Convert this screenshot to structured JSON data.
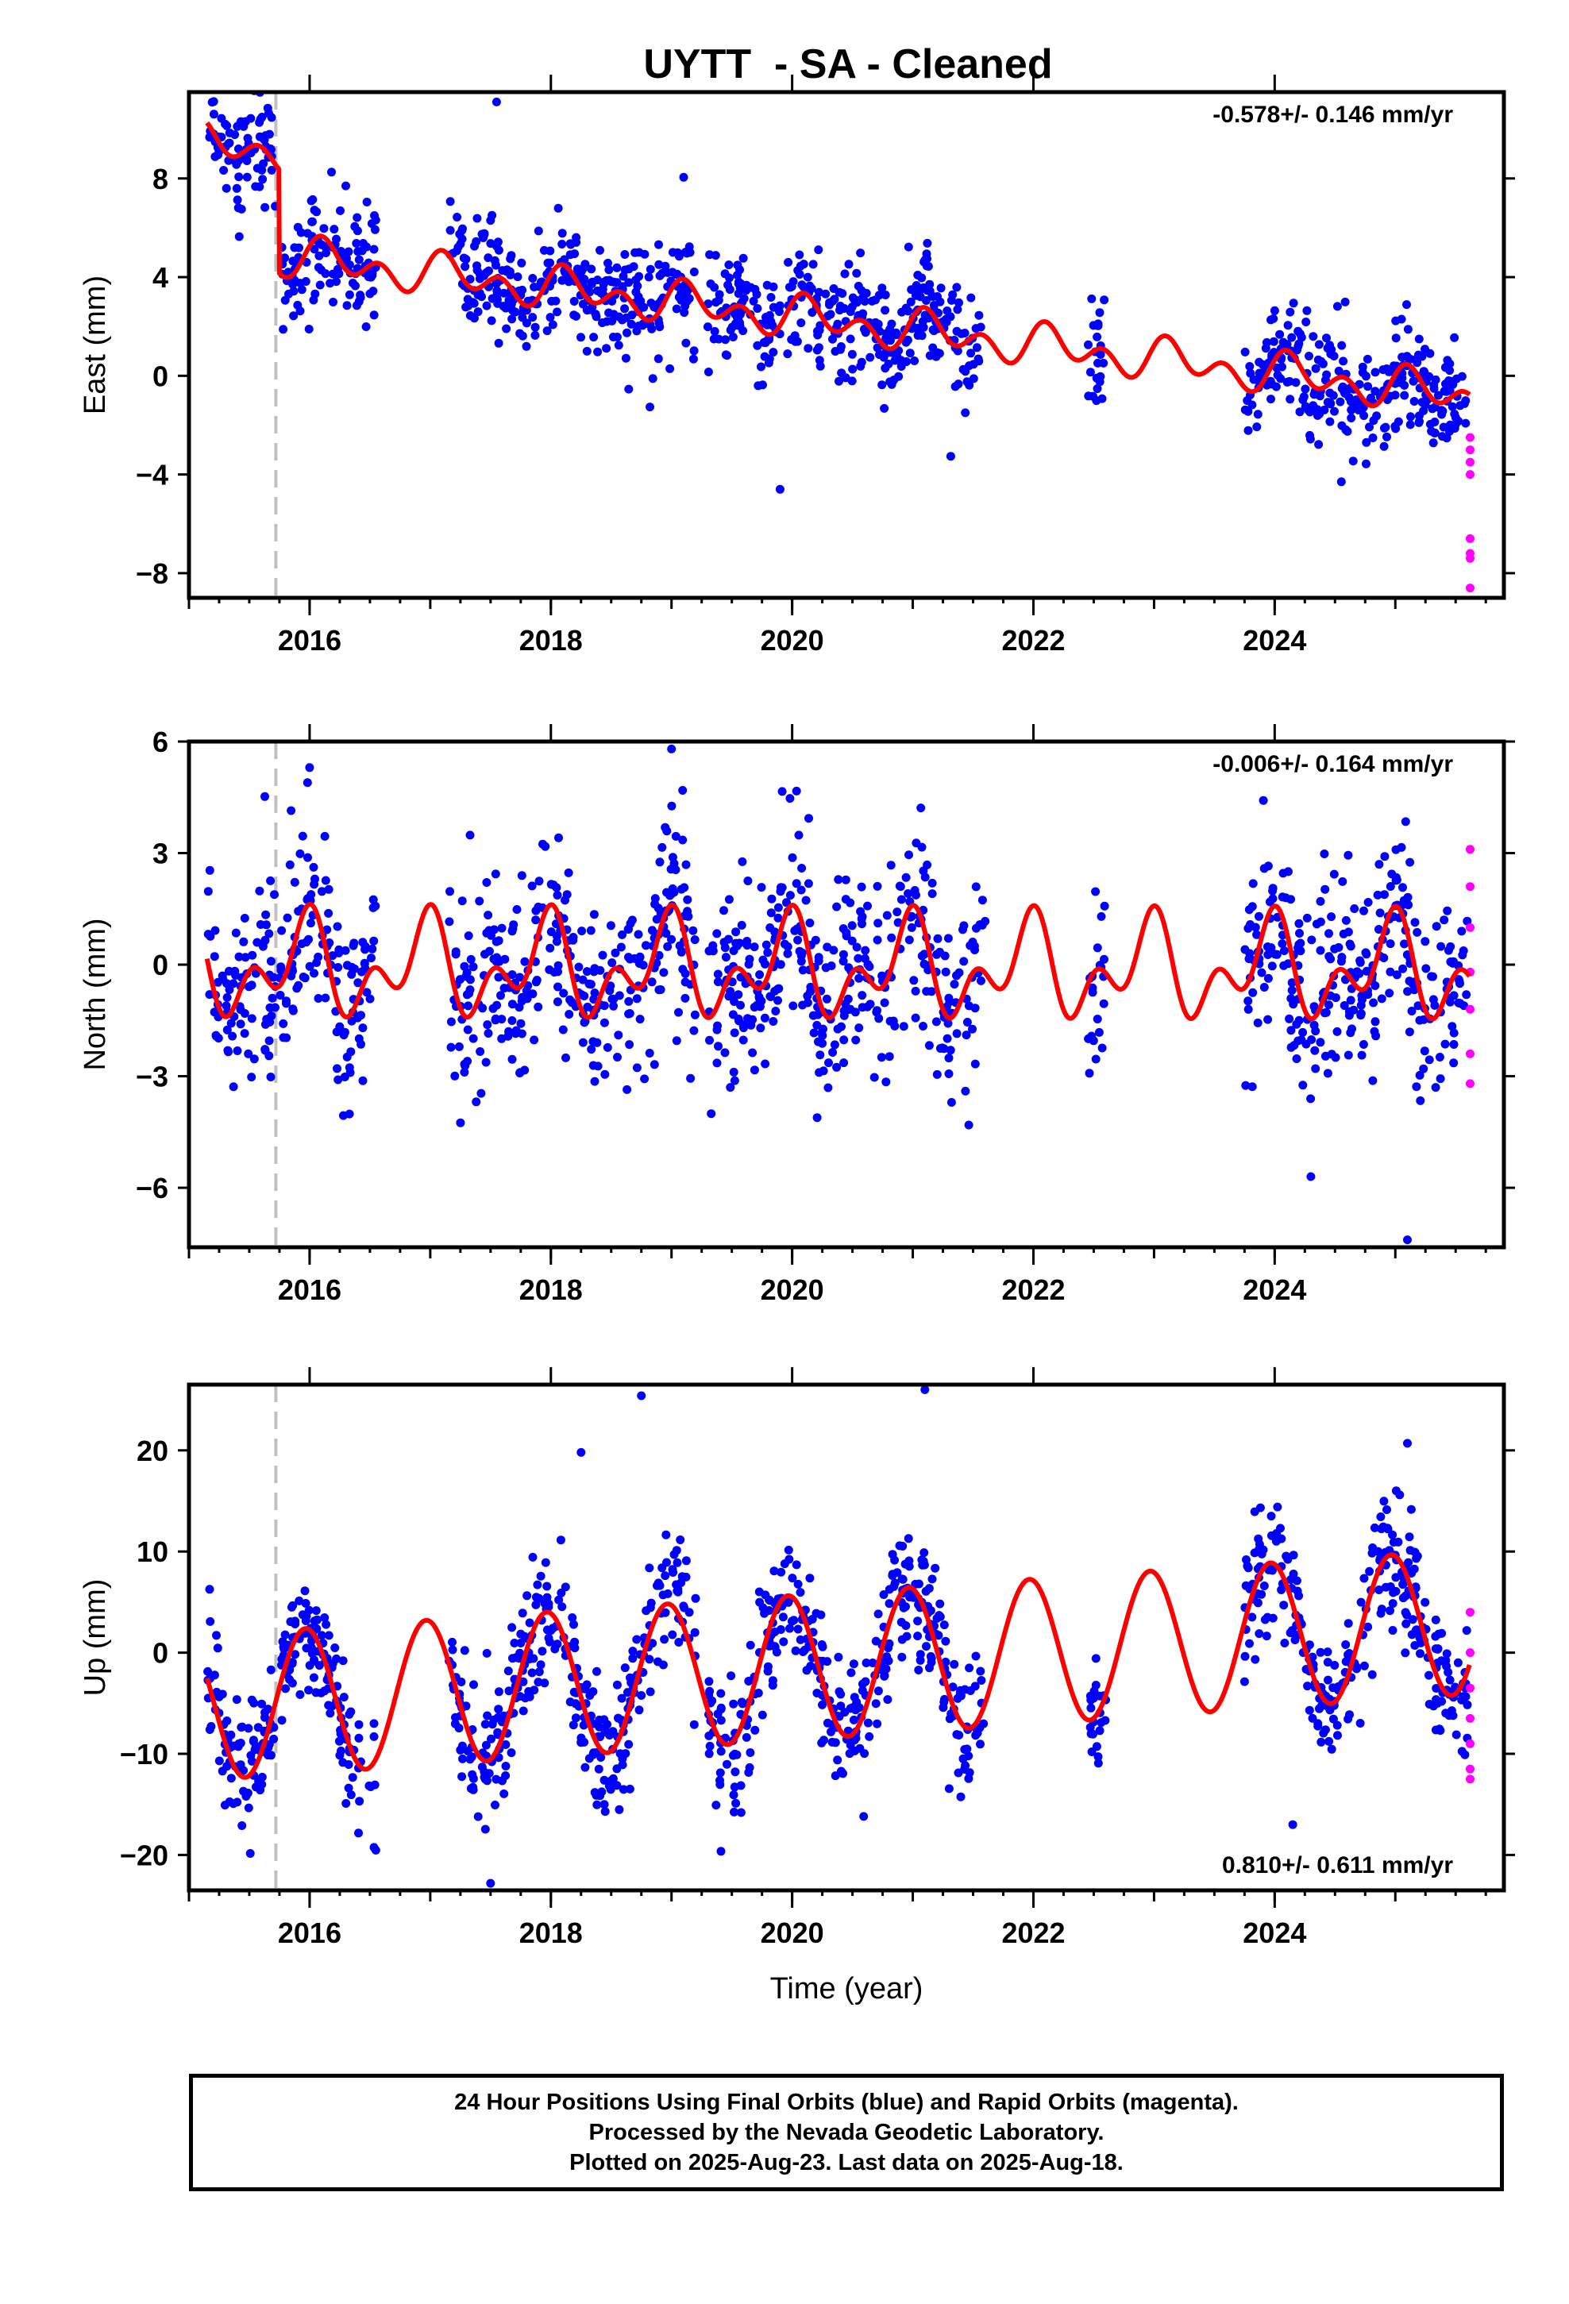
{
  "chart_data": [
    {
      "type": "scatter",
      "title": "UYTT  - SA - Cleaned",
      "ylabel": "East (mm)",
      "xlabel": "",
      "xlim": [
        2015.0,
        2025.9
      ],
      "ylim": [
        -9.0,
        11.5
      ],
      "yticks": [
        8,
        4,
        0,
        -4,
        -8
      ],
      "ytick_labels": [
        "8",
        "4",
        "0",
        "−4",
        "−8"
      ],
      "xticks": [
        2016,
        2018,
        2020,
        2022,
        2024
      ],
      "xtick_labels": [
        "2016",
        "2018",
        "2020",
        "2022",
        "2024"
      ],
      "rate_text": "-0.578+/- 0.146 mm/yr",
      "rate_position": "top-right",
      "equipment_change": 2015.72,
      "fit": {
        "offset_before": 6.6,
        "offset_after": 2.4,
        "step_epoch": 2015.75,
        "trend": -0.578,
        "annual_sin": 0.4,
        "annual_cos": 0.25,
        "semiannual_sin": 0.5,
        "semiannual_cos": 0.3
      },
      "noise_sd": 1.2,
      "point_count": 1150,
      "outliers": [
        [
          2015.3,
          10.2
        ],
        [
          2017.55,
          11.1
        ],
        [
          2017.5,
          6.3
        ],
        [
          2016.3,
          7.7
        ],
        [
          2019.9,
          -4.6
        ]
      ],
      "rapid_values": [
        -2.5,
        -3.0,
        -3.5,
        -4.0,
        -6.6,
        -7.2,
        -7.4,
        -8.6
      ]
    },
    {
      "type": "scatter",
      "title": "",
      "ylabel": "North (mm)",
      "xlabel": "",
      "xlim": [
        2015.0,
        2025.9
      ],
      "ylim": [
        -7.6,
        6.0
      ],
      "yticks": [
        6,
        3,
        0,
        -3,
        -6
      ],
      "ytick_labels": [
        "6",
        "3",
        "0",
        "−3",
        "−6"
      ],
      "xticks": [
        2016,
        2018,
        2020,
        2022,
        2024
      ],
      "xtick_labels": [
        "2016",
        "2018",
        "2020",
        "2022",
        "2024"
      ],
      "rate_text": "-0.006+/- 0.164 mm/yr",
      "rate_position": "top-right",
      "equipment_change": 2015.72,
      "fit": {
        "offset_before": -0.1,
        "offset_after": -0.1,
        "step_epoch": 2015.75,
        "trend": -0.006,
        "annual_sin": -0.3,
        "annual_cos": 0.9,
        "semiannual_sin": 0.2,
        "semiannual_cos": 0.8
      },
      "noise_sd": 1.3,
      "point_count": 1150,
      "outliers": [
        [
          2019.0,
          5.8
        ],
        [
          2016.0,
          5.3
        ],
        [
          2025.1,
          -7.4
        ],
        [
          2024.3,
          -5.7
        ]
      ],
      "rapid_values": [
        3.1,
        2.1,
        1.0,
        -0.2,
        -1.2,
        -2.4,
        -3.2
      ]
    },
    {
      "type": "scatter",
      "title": "",
      "ylabel": "Up (mm)",
      "xlabel": "Time (year)",
      "xlim": [
        2015.0,
        2025.9
      ],
      "ylim": [
        -23.5,
        26.5
      ],
      "yticks": [
        20,
        10,
        0,
        -10,
        -20
      ],
      "ytick_labels": [
        "20",
        "10",
        "0",
        "−10",
        "−20"
      ],
      "xticks": [
        2016,
        2018,
        2020,
        2022,
        2024
      ],
      "xtick_labels": [
        "2016",
        "2018",
        "2020",
        "2022",
        "2024"
      ],
      "rate_text": "0.810+/- 0.611 mm/yr",
      "rate_position": "bottom-right",
      "equipment_change": 2015.72,
      "fit": {
        "offset_before": -1.5,
        "offset_after": -1.5,
        "step_epoch": 2015.75,
        "trend": 0.81,
        "annual_sin": -1.5,
        "annual_cos": 7.0,
        "semiannual_sin": 0.0,
        "semiannual_cos": 0.0
      },
      "noise_sd": 3.2,
      "point_count": 1150,
      "outliers": [
        [
          2018.75,
          25.4
        ],
        [
          2021.1,
          26.0
        ],
        [
          2017.5,
          -22.8
        ],
        [
          2018.25,
          19.8
        ],
        [
          2025.1,
          20.7
        ],
        [
          2024.15,
          -17.0
        ]
      ],
      "rapid_values": [
        4.0,
        0.0,
        -3.5,
        -6.5,
        -9.0,
        -11.5,
        -12.5
      ]
    }
  ],
  "segments": [
    [
      2015.15,
      2015.72
    ],
    [
      2015.75,
      2016.55
    ],
    [
      2017.15,
      2019.2
    ],
    [
      2019.3,
      2021.6
    ],
    [
      2022.45,
      2022.6
    ],
    [
      2023.75,
      2025.6
    ]
  ],
  "rapid_epoch": 2025.62,
  "colors": {
    "final": "#0000ff",
    "rapid": "#ff00ff",
    "fit": "#ff0000",
    "equipment": "#c0c0c0"
  },
  "footer": {
    "line1": "24 Hour Positions Using Final Orbits (blue) and Rapid Orbits (magenta).",
    "line2": "Processed by the Nevada Geodetic Laboratory.",
    "line3": "Plotted on 2025-Aug-23. Last data on 2025-Aug-18."
  }
}
